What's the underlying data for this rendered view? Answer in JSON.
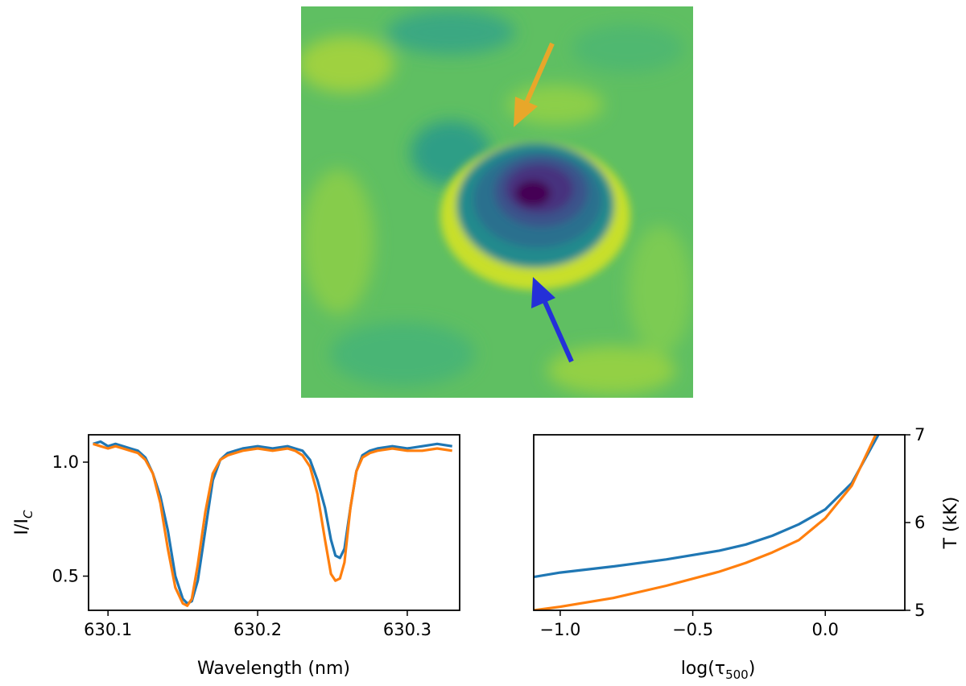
{
  "colors": {
    "blue": "#1f77b4",
    "orange": "#ff7f0e",
    "arrow_orange": "#e8a72a",
    "arrow_blue": "#2430d8"
  },
  "chart_data": [
    {
      "type": "heatmap",
      "description_role": "intensity image",
      "colormap": "viridis",
      "annotations": [
        {
          "kind": "arrow",
          "color": "orange",
          "direction": "down-left"
        },
        {
          "kind": "arrow",
          "color": "blue",
          "direction": "up-left"
        }
      ]
    },
    {
      "type": "line",
      "xlabel": "Wavelength (nm)",
      "ylabel": "I/I_C",
      "ylabel_main": "I/I",
      "ylabel_sub": "C",
      "xlim": [
        630.087,
        630.335
      ],
      "ylim": [
        0.35,
        1.12
      ],
      "xticks": [
        630.1,
        630.2,
        630.3
      ],
      "xtick_labels": [
        "630.1",
        "630.2",
        "630.3"
      ],
      "yticks": [
        0.5,
        1.0
      ],
      "ytick_labels": [
        "0.5",
        "1.0"
      ],
      "series": [
        {
          "name": "blue profile",
          "color": "blue",
          "x": [
            630.09,
            630.095,
            630.1,
            630.105,
            630.11,
            630.115,
            630.12,
            630.125,
            630.13,
            630.135,
            630.14,
            630.145,
            630.15,
            630.153,
            630.156,
            630.16,
            630.165,
            630.17,
            630.175,
            630.18,
            630.185,
            630.19,
            630.2,
            630.21,
            630.22,
            630.225,
            630.23,
            630.235,
            630.24,
            630.245,
            630.249,
            630.252,
            630.255,
            630.258,
            630.262,
            630.266,
            630.27,
            630.275,
            630.28,
            630.29,
            630.3,
            630.31,
            630.32,
            630.33
          ],
          "y": [
            1.08,
            1.09,
            1.07,
            1.08,
            1.07,
            1.06,
            1.05,
            1.02,
            0.95,
            0.85,
            0.7,
            0.5,
            0.4,
            0.38,
            0.39,
            0.48,
            0.7,
            0.92,
            1.01,
            1.04,
            1.05,
            1.06,
            1.07,
            1.06,
            1.07,
            1.06,
            1.05,
            1.01,
            0.92,
            0.8,
            0.66,
            0.59,
            0.58,
            0.62,
            0.8,
            0.96,
            1.03,
            1.05,
            1.06,
            1.07,
            1.06,
            1.07,
            1.08,
            1.07
          ]
        },
        {
          "name": "orange profile",
          "color": "orange",
          "x": [
            630.09,
            630.095,
            630.1,
            630.105,
            630.11,
            630.115,
            630.12,
            630.125,
            630.13,
            630.135,
            630.14,
            630.145,
            630.15,
            630.153,
            630.156,
            630.16,
            630.165,
            630.17,
            630.175,
            630.18,
            630.185,
            630.19,
            630.2,
            630.21,
            630.22,
            630.225,
            630.23,
            630.235,
            630.24,
            630.245,
            630.249,
            630.252,
            630.255,
            630.258,
            630.262,
            630.266,
            630.27,
            630.275,
            630.28,
            630.29,
            630.3,
            630.31,
            630.32,
            630.33
          ],
          "y": [
            1.08,
            1.07,
            1.06,
            1.07,
            1.06,
            1.05,
            1.04,
            1.01,
            0.95,
            0.82,
            0.62,
            0.45,
            0.38,
            0.37,
            0.4,
            0.55,
            0.78,
            0.95,
            1.01,
            1.03,
            1.04,
            1.05,
            1.06,
            1.05,
            1.06,
            1.05,
            1.03,
            0.98,
            0.86,
            0.66,
            0.51,
            0.48,
            0.49,
            0.56,
            0.8,
            0.96,
            1.02,
            1.04,
            1.05,
            1.06,
            1.05,
            1.05,
            1.06,
            1.05
          ]
        }
      ]
    },
    {
      "type": "line",
      "xlabel": "log(τ500)",
      "xlabel_main": "log(τ",
      "xlabel_sub": "500",
      "xlabel_end": ")",
      "ylabel": "T (kK)",
      "y_axis_side": "right",
      "xlim": [
        -1.1,
        0.3
      ],
      "ylim": [
        5,
        7
      ],
      "xticks": [
        -1.0,
        -0.5,
        0.0
      ],
      "xtick_labels": [
        "−1.0",
        "−0.5",
        "0.0"
      ],
      "yticks": [
        5,
        6,
        7
      ],
      "ytick_labels": [
        "5",
        "6",
        "7"
      ],
      "series": [
        {
          "name": "blue model",
          "color": "blue",
          "x": [
            -1.1,
            -1.0,
            -0.8,
            -0.6,
            -0.4,
            -0.3,
            -0.2,
            -0.1,
            0.0,
            0.1,
            0.2
          ],
          "y": [
            5.38,
            5.43,
            5.5,
            5.58,
            5.68,
            5.75,
            5.85,
            5.98,
            6.15,
            6.45,
            7.0
          ]
        },
        {
          "name": "orange model",
          "color": "orange",
          "x": [
            -1.1,
            -1.0,
            -0.8,
            -0.6,
            -0.4,
            -0.3,
            -0.2,
            -0.1,
            0.0,
            0.1,
            0.19
          ],
          "y": [
            5.0,
            5.04,
            5.14,
            5.28,
            5.44,
            5.54,
            5.66,
            5.8,
            6.05,
            6.42,
            7.0
          ]
        }
      ]
    }
  ]
}
